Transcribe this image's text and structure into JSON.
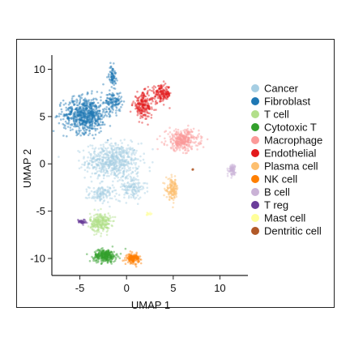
{
  "chart_data": {
    "type": "scatter",
    "xlabel": "UMAP 1",
    "ylabel": "UMAP 2",
    "xlim": [
      -8,
      13
    ],
    "ylim": [
      -11.8,
      11.5
    ],
    "xticks": [
      -5,
      0,
      5,
      10
    ],
    "yticks": [
      10,
      5,
      0,
      -5,
      -10
    ],
    "grid": false,
    "legend_position": "right",
    "series": [
      {
        "name": "Cancer",
        "color": "#a6cee3",
        "clusters": [
          {
            "cx": -1.5,
            "cy": 0.3,
            "sx": 2.6,
            "sy": 1.7,
            "n": 600
          },
          {
            "cx": -2.7,
            "cy": -3.2,
            "sx": 1.2,
            "sy": 0.8,
            "n": 120
          },
          {
            "cx": 0.5,
            "cy": -2.5,
            "sx": 1.4,
            "sy": 1.2,
            "n": 150
          }
        ]
      },
      {
        "name": "Fibroblast",
        "color": "#1f78b4",
        "clusters": [
          {
            "cx": -4.4,
            "cy": 5.2,
            "sx": 2.1,
            "sy": 1.7,
            "n": 700
          },
          {
            "cx": -1.4,
            "cy": 6.6,
            "sx": 0.8,
            "sy": 0.9,
            "n": 120
          },
          {
            "cx": -1.5,
            "cy": 9.3,
            "sx": 0.35,
            "sy": 1.0,
            "n": 80
          }
        ]
      },
      {
        "name": "T cell",
        "color": "#b2df8a",
        "clusters": [
          {
            "cx": -2.8,
            "cy": -6.2,
            "sx": 1.0,
            "sy": 0.9,
            "n": 260
          }
        ]
      },
      {
        "name": "Cytotoxic T",
        "color": "#33a02c",
        "clusters": [
          {
            "cx": -2.3,
            "cy": -9.7,
            "sx": 1.1,
            "sy": 0.6,
            "n": 300
          }
        ]
      },
      {
        "name": "Macrophage",
        "color": "#fb9a99",
        "clusters": [
          {
            "cx": 6.0,
            "cy": 2.5,
            "sx": 1.6,
            "sy": 1.0,
            "n": 340
          }
        ]
      },
      {
        "name": "Endothelial",
        "color": "#e31a1c",
        "clusters": [
          {
            "cx": 1.8,
            "cy": 6.2,
            "sx": 1.0,
            "sy": 1.2,
            "n": 220
          },
          {
            "cx": 3.8,
            "cy": 7.4,
            "sx": 0.9,
            "sy": 0.8,
            "n": 160
          }
        ]
      },
      {
        "name": "Plasma cell",
        "color": "#fdbf6f",
        "clusters": [
          {
            "cx": 4.9,
            "cy": -2.7,
            "sx": 0.6,
            "sy": 1.0,
            "n": 150
          }
        ]
      },
      {
        "name": "NK cell",
        "color": "#ff7f00",
        "clusters": [
          {
            "cx": 0.7,
            "cy": -10.0,
            "sx": 0.6,
            "sy": 0.45,
            "n": 160
          }
        ]
      },
      {
        "name": "B cell",
        "color": "#cab2d6",
        "clusters": [
          {
            "cx": 11.3,
            "cy": -0.6,
            "sx": 0.35,
            "sy": 0.5,
            "n": 80
          }
        ]
      },
      {
        "name": "T reg",
        "color": "#6a3d9a",
        "clusters": [
          {
            "cx": -4.8,
            "cy": -6.1,
            "sx": 0.4,
            "sy": 0.2,
            "n": 50
          }
        ]
      },
      {
        "name": "Mast cell",
        "color": "#ffff99",
        "clusters": [
          {
            "cx": 2.4,
            "cy": -5.3,
            "sx": 0.2,
            "sy": 0.2,
            "n": 12
          }
        ]
      },
      {
        "name": "Dentritic cell",
        "color": "#b15928",
        "clusters": [
          {
            "cx": 7.1,
            "cy": -0.6,
            "sx": 0.1,
            "sy": 0.1,
            "n": 5
          }
        ]
      }
    ]
  }
}
